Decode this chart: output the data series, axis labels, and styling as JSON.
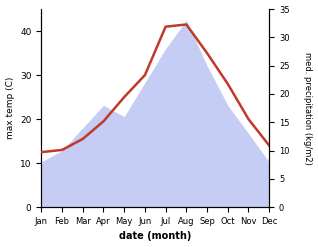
{
  "months": [
    "Jan",
    "Feb",
    "Mar",
    "Apr",
    "May",
    "Jun",
    "Jul",
    "Aug",
    "Sep",
    "Oct",
    "Nov",
    "Dec"
  ],
  "max_temp": [
    12.5,
    13.0,
    15.5,
    19.5,
    25.0,
    30.0,
    41.0,
    41.5,
    35.0,
    28.0,
    20.0,
    14.0
  ],
  "precipitation": [
    8,
    10,
    14,
    18,
    16,
    22,
    28,
    33,
    25,
    18,
    13,
    8
  ],
  "temp_color": "#c0392b",
  "precip_fill_color": "#c5cdf5",
  "temp_ylim": [
    0,
    45
  ],
  "precip_ylim": [
    0,
    35
  ],
  "temp_yticks": [
    0,
    10,
    20,
    30,
    40
  ],
  "precip_yticks": [
    0,
    5,
    10,
    15,
    20,
    25,
    30,
    35
  ],
  "ylabel_left": "max temp (C)",
  "ylabel_right": "med. precipitation (kg/m2)",
  "xlabel": "date (month)",
  "background": "#ffffff"
}
